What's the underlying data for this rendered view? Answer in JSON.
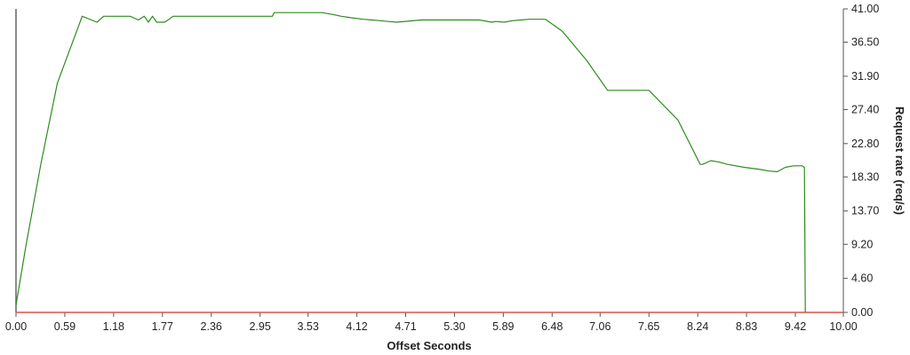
{
  "chart_data": {
    "type": "line",
    "title": "",
    "xlabel": "Offset Seconds",
    "ylabel": "Request rate (req/s)",
    "xlim": [
      0,
      10
    ],
    "ylim": [
      0,
      41
    ],
    "y_axis_side": "right",
    "grid": false,
    "legend": "none",
    "x_ticks": [
      "0.00",
      "0.59",
      "1.18",
      "1.77",
      "2.36",
      "2.95",
      "3.53",
      "4.12",
      "4.71",
      "5.30",
      "5.89",
      "6.48",
      "7.06",
      "7.65",
      "8.24",
      "8.83",
      "9.42",
      "10.00"
    ],
    "y_ticks": [
      "0.00",
      "4.60",
      "9.20",
      "13.70",
      "18.30",
      "22.80",
      "27.40",
      "31.90",
      "36.50",
      "41.00"
    ],
    "colors": {
      "series": "#2e8b1e",
      "baseline": "#d9534f",
      "axis": "#555555"
    },
    "series": [
      {
        "x": [
          0.0,
          0.12,
          0.3,
          0.5,
          0.6,
          0.8,
          0.98,
          1.06,
          1.38,
          1.48,
          1.55,
          1.6,
          1.65,
          1.7,
          1.8,
          1.9,
          2.0,
          2.08,
          2.14,
          2.6,
          2.7,
          2.8,
          3.1,
          3.12,
          3.2,
          3.4,
          3.5,
          3.7,
          3.85,
          3.93,
          4.05,
          4.2,
          4.3,
          4.4,
          4.5,
          4.6,
          4.9,
          5.0,
          5.2,
          5.4,
          5.6,
          5.75,
          5.8,
          5.9,
          6.0,
          6.1,
          6.2,
          6.3,
          6.4,
          6.6,
          6.9,
          7.15,
          7.25,
          7.4,
          7.65,
          8.0,
          8.27,
          8.3,
          8.4,
          8.5,
          8.6,
          8.8,
          9.0,
          9.1,
          9.2,
          9.3,
          9.4,
          9.5,
          9.53,
          9.54
        ],
        "y": [
          1.0,
          9.0,
          20.0,
          31.0,
          34.0,
          40.0,
          39.2,
          40.0,
          40.0,
          39.5,
          40.0,
          39.2,
          40.0,
          39.2,
          39.2,
          40.0,
          40.0,
          40.0,
          40.0,
          40.0,
          40.0,
          40.0,
          40.0,
          40.5,
          40.5,
          40.5,
          40.5,
          40.5,
          40.2,
          40.0,
          39.8,
          39.6,
          39.5,
          39.4,
          39.3,
          39.2,
          39.5,
          39.5,
          39.5,
          39.5,
          39.5,
          39.2,
          39.3,
          39.2,
          39.4,
          39.5,
          39.6,
          39.6,
          39.6,
          38.0,
          34.0,
          30.0,
          30.0,
          30.0,
          30.0,
          26.0,
          20.0,
          20.0,
          20.5,
          20.3,
          20.0,
          19.6,
          19.3,
          19.1,
          19.0,
          19.6,
          19.8,
          19.8,
          19.6,
          0.0
        ]
      }
    ]
  }
}
